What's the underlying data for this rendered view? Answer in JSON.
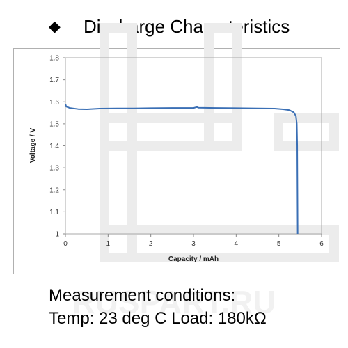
{
  "page": {
    "bullet_symbol": "◆",
    "title": "Discharge Characteristics",
    "conditions_heading": "Measurement conditions:",
    "conditions_detail": "Temp: 23 deg C   Load: 180kΩ",
    "watermark_text": "RUSPART.RU"
  },
  "chart_data": {
    "type": "line",
    "title": "",
    "xlabel": "Capacity  /  mAh",
    "ylabel": "Voltage  /  V",
    "xlim": [
      0,
      6
    ],
    "ylim": [
      1.0,
      1.8
    ],
    "xticks": [
      "0",
      "1",
      "2",
      "3",
      "4",
      "5",
      "6"
    ],
    "yticks": [
      "1",
      "1.1",
      "1.2",
      "1.3",
      "1.4",
      "1.5",
      "1.6",
      "1.7",
      "1.8"
    ],
    "grid": false,
    "legend": "none",
    "series": [
      {
        "color": "#3a6fb5",
        "points": [
          [
            0.0,
            1.59
          ],
          [
            0.02,
            1.578
          ],
          [
            0.1,
            1.572
          ],
          [
            0.3,
            1.567
          ],
          [
            0.5,
            1.566
          ],
          [
            0.8,
            1.569
          ],
          [
            1.2,
            1.57
          ],
          [
            1.6,
            1.57
          ],
          [
            2.0,
            1.571
          ],
          [
            2.5,
            1.572
          ],
          [
            3.0,
            1.572
          ],
          [
            3.08,
            1.576
          ],
          [
            3.12,
            1.573
          ],
          [
            3.5,
            1.572
          ],
          [
            4.0,
            1.571
          ],
          [
            4.5,
            1.57
          ],
          [
            4.9,
            1.569
          ],
          [
            5.1,
            1.566
          ],
          [
            5.25,
            1.562
          ],
          [
            5.35,
            1.552
          ],
          [
            5.4,
            1.535
          ],
          [
            5.42,
            1.5
          ],
          [
            5.43,
            1.4
          ],
          [
            5.435,
            1.2
          ],
          [
            5.44,
            1.0
          ]
        ]
      }
    ]
  }
}
